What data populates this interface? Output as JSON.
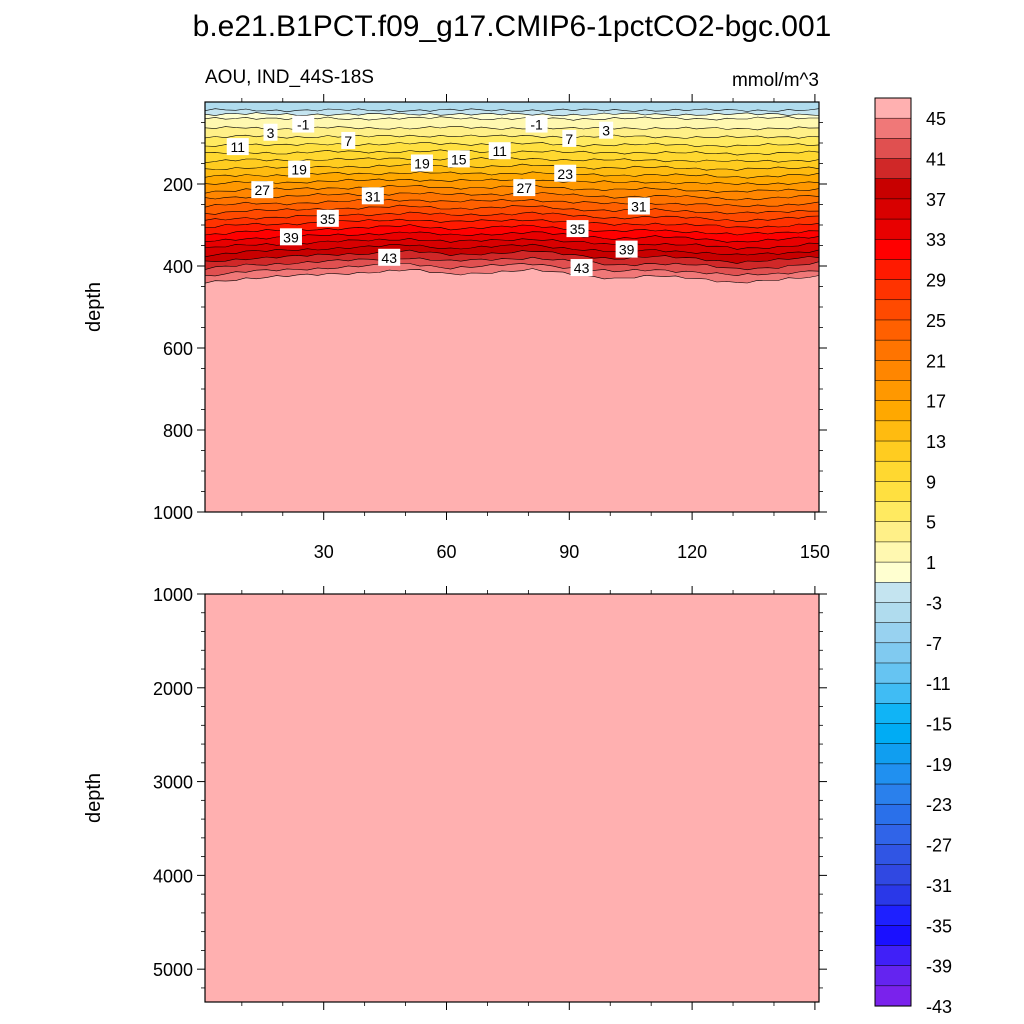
{
  "figure": {
    "title": "b.e21.B1PCT.f09_g17.CMIP6-1pctCO2-bgc.001",
    "left_subtitle": "AOU, IND_44S-18S",
    "right_subtitle": "mmol/m^3"
  },
  "chart_data": [
    {
      "type": "heatmap",
      "panel": "upper",
      "ylabel": "depth",
      "xlabel": "",
      "xlim": [
        1,
        151
      ],
      "ylim": [
        1000,
        0
      ],
      "x_ticks": [
        30,
        60,
        90,
        120,
        150
      ],
      "y_ticks": [
        200,
        400,
        600,
        800,
        1000
      ],
      "grid": false,
      "contour_levels": [
        -3,
        -1,
        1,
        3,
        5,
        7,
        9,
        11,
        13,
        15,
        17,
        19,
        21,
        23,
        25,
        27,
        29,
        31,
        33,
        35,
        37,
        39,
        41,
        43,
        45
      ],
      "contour_labels": [
        {
          "value": "-1",
          "x": 25,
          "depth": 55
        },
        {
          "value": "3",
          "x": 17,
          "depth": 75
        },
        {
          "value": "11",
          "x": 9,
          "depth": 110
        },
        {
          "value": "7",
          "x": 36,
          "depth": 95
        },
        {
          "value": "19",
          "x": 24,
          "depth": 165
        },
        {
          "value": "27",
          "x": 15,
          "depth": 215
        },
        {
          "value": "35",
          "x": 31,
          "depth": 285
        },
        {
          "value": "39",
          "x": 22,
          "depth": 330
        },
        {
          "value": "43",
          "x": 46,
          "depth": 380
        },
        {
          "value": "31",
          "x": 42,
          "depth": 230
        },
        {
          "value": "19",
          "x": 54,
          "depth": 150
        },
        {
          "value": "15",
          "x": 63,
          "depth": 140
        },
        {
          "value": "11",
          "x": 73,
          "depth": 120
        },
        {
          "value": "-1",
          "x": 82,
          "depth": 55
        },
        {
          "value": "7",
          "x": 90,
          "depth": 90
        },
        {
          "value": "3",
          "x": 99,
          "depth": 70
        },
        {
          "value": "23",
          "x": 89,
          "depth": 175
        },
        {
          "value": "27",
          "x": 79,
          "depth": 210
        },
        {
          "value": "31",
          "x": 107,
          "depth": 255
        },
        {
          "value": "35",
          "x": 92,
          "depth": 310
        },
        {
          "value": "39",
          "x": 104,
          "depth": 360
        },
        {
          "value": "43",
          "x": 93,
          "depth": 405
        }
      ],
      "field_depths_by_x": {
        "x": [
          1,
          11,
          21,
          31,
          41,
          51,
          61,
          71,
          81,
          91,
          101,
          111,
          121,
          131,
          141,
          151
        ],
        "depth_of_level_1": [
          40,
          38,
          42,
          39,
          41,
          40,
          38,
          41,
          40,
          42,
          39,
          40,
          41,
          40,
          39,
          40
        ],
        "depth_of_level_45": [
          440,
          430,
          425,
          420,
          415,
          410,
          420,
          415,
          410,
          420,
          430,
          425,
          430,
          440,
          435,
          425
        ]
      }
    },
    {
      "type": "heatmap",
      "panel": "lower",
      "ylabel": "depth",
      "xlabel": "",
      "xlim": [
        1,
        151
      ],
      "ylim": [
        5350,
        1000
      ],
      "y_ticks": [
        1000,
        2000,
        3000,
        4000,
        5000
      ],
      "grid": false,
      "value": "45+",
      "fill_color": "#ffb0b0"
    }
  ],
  "colorbar": {
    "tick_labels": [
      "45",
      "41",
      "37",
      "33",
      "29",
      "25",
      "21",
      "17",
      "13",
      "9",
      "5",
      "1",
      "-3",
      "-7",
      "-11",
      "-15",
      "-19",
      "-23",
      "-27",
      "-31",
      "-35",
      "-39",
      "-43"
    ],
    "colors_top_to_bottom": [
      "#ffb0b0",
      "#f07878",
      "#e05050",
      "#d02828",
      "#c80000",
      "#d80000",
      "#e80000",
      "#ff0000",
      "#ff1a00",
      "#ff3300",
      "#ff4a00",
      "#ff6000",
      "#ff7400",
      "#ff8600",
      "#ff9800",
      "#ffa800",
      "#ffbb10",
      "#ffcc20",
      "#ffd830",
      "#ffe040",
      "#ffea60",
      "#fff088",
      "#fff8b0",
      "#ffffd0",
      "#c4e4f0",
      "#b0dcee",
      "#98d2f0",
      "#80caf0",
      "#66c4f2",
      "#40bcf4",
      "#10b4f6",
      "#00acf4",
      "#109ef0",
      "#2090f0",
      "#2a80ec",
      "#2a70ea",
      "#3064e8",
      "#3055e4",
      "#3048e2",
      "#2a38e8",
      "#1e20ff",
      "#1a10ff",
      "#4020f8",
      "#6424f0",
      "#7a22ec"
    ]
  }
}
